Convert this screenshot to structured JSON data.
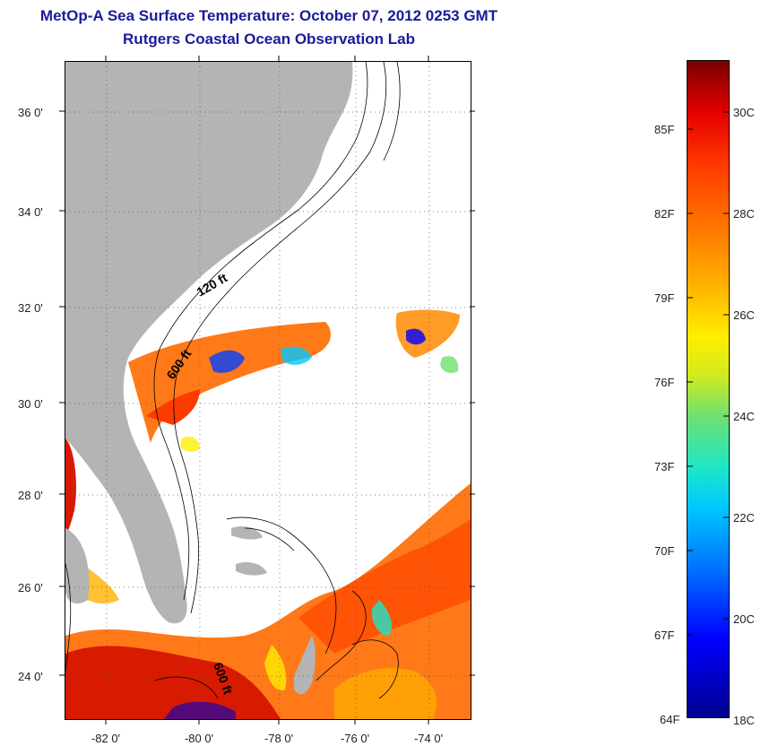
{
  "title": {
    "line1": "MetOp-A Sea Surface Temperature:  October 07, 2012 0253 GMT",
    "line2": "Rutgers Coastal Ocean Observation Lab"
  },
  "map": {
    "latitude_labels": [
      "36 0'",
      "34 0'",
      "32 0'",
      "30 0'",
      "28 0'",
      "26 0'",
      "24 0'"
    ],
    "longitude_labels": [
      "-82 0'",
      "-80 0'",
      "-78 0'",
      "-76 0'",
      "-74 0'"
    ],
    "contour_labels": [
      "120 ft",
      "600 ft",
      "600 ft"
    ],
    "land_color": "#b4b4b4"
  },
  "colorbar": {
    "fahrenheit_labels": [
      "85F",
      "82F",
      "79F",
      "76F",
      "73F",
      "70F",
      "67F",
      "64F"
    ],
    "celsius_labels": [
      "30C",
      "28C",
      "26C",
      "24C",
      "22C",
      "20C",
      "18C"
    ]
  }
}
